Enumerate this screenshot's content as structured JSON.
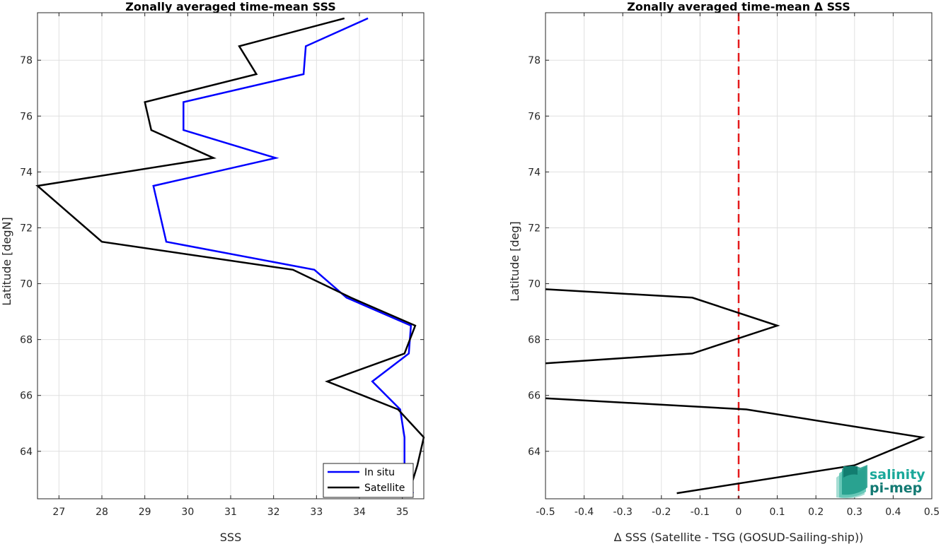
{
  "chart_data": [
    {
      "type": "line",
      "title": "Zonally averaged time-mean SSS",
      "xlabel": "SSS",
      "ylabel": "Latitude [degN]",
      "xlim": [
        26.5,
        35.5
      ],
      "ylim": [
        62.3,
        79.7
      ],
      "xticks": [
        27,
        28,
        29,
        30,
        31,
        32,
        33,
        34,
        35
      ],
      "yticks": [
        64,
        66,
        68,
        70,
        72,
        74,
        76,
        78
      ],
      "grid": true,
      "legend": "bottom-right",
      "series": [
        {
          "name": "In situ",
          "color": "#0000ff",
          "x": [
            35.25,
            35.05,
            35.05,
            34.95,
            34.3,
            35.15,
            35.2,
            33.7,
            32.95,
            29.5,
            29.35,
            29.2,
            32.05,
            29.9,
            29.9,
            32.7,
            32.75,
            34.2
          ],
          "y": [
            62.5,
            63.5,
            64.5,
            65.5,
            66.5,
            67.5,
            68.5,
            69.5,
            70.5,
            71.5,
            72.5,
            73.5,
            74.5,
            75.5,
            76.5,
            77.5,
            78.5,
            79.5
          ]
        },
        {
          "name": "Satellite",
          "color": "#000000",
          "x": [
            35.15,
            35.35,
            35.5,
            34.9,
            33.25,
            35.05,
            35.3,
            33.8,
            32.45,
            28.0,
            27.25,
            26.5,
            30.6,
            29.15,
            29.0,
            31.6,
            31.2,
            33.65
          ],
          "y": [
            62.5,
            63.5,
            64.5,
            65.5,
            66.5,
            67.5,
            68.5,
            69.5,
            70.5,
            71.5,
            72.5,
            73.5,
            74.5,
            75.5,
            76.5,
            77.5,
            78.5,
            79.5
          ]
        }
      ]
    },
    {
      "type": "line",
      "title": "Zonally averaged time-mean Δ SSS",
      "xlabel": "Δ SSS (Satellite - TSG (GOSUD-Sailing-ship))",
      "ylabel": "Latitude [deg]",
      "xlim": [
        -0.5,
        0.5
      ],
      "ylim": [
        62.3,
        79.7
      ],
      "xticks": [
        "-0.5",
        "-0.4",
        "-0.3",
        "-0.2",
        "-0.1",
        "0",
        "0.1",
        "0.2",
        "0.3",
        "0.4",
        "0.5"
      ],
      "yticks": [
        64,
        66,
        68,
        70,
        72,
        74,
        76,
        78
      ],
      "grid": true,
      "reference_line": {
        "x": 0,
        "color": "#e41a1c",
        "style": "dashed"
      },
      "series": [
        {
          "color": "#000000",
          "segments": [
            {
              "x": [
                -0.16,
                0.3,
                0.475,
                0.02,
                -0.5
              ],
              "y": [
                62.5,
                63.5,
                64.5,
                65.5,
                65.9
              ]
            },
            {
              "x": [
                -0.5,
                -0.12,
                0.1,
                -0.12,
                -0.5
              ],
              "y": [
                67.15,
                67.5,
                68.5,
                69.5,
                69.8
              ]
            }
          ]
        }
      ]
    }
  ],
  "logo": {
    "line1": "salinity",
    "line2": "pi-mep"
  }
}
